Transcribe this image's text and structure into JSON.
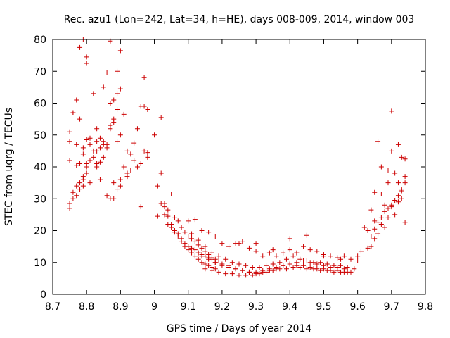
{
  "chart_data": {
    "type": "scatter",
    "title": "Rec. azu1 (Lon=242, Lat=34, h=HE), days 008-009, 2014, window 003",
    "xlabel": "GPS time / Days of year 2014",
    "ylabel": "STEC from uqrg / TECUs",
    "xlim": [
      8.7,
      9.8
    ],
    "ylim": [
      0,
      80
    ],
    "xticks": [
      "8.7",
      "8.8",
      "8.9",
      "9",
      "9.1",
      "9.2",
      "9.3",
      "9.4",
      "9.5",
      "9.6",
      "9.7",
      "9.8"
    ],
    "yticks": [
      "0",
      "10",
      "20",
      "30",
      "40",
      "50",
      "60",
      "70",
      "80"
    ],
    "grid": false,
    "legend": "none",
    "marker": "plus",
    "color": "#cc0000",
    "series": [
      {
        "x": [
          8.75,
          8.75,
          8.75,
          8.76,
          8.77,
          8.77,
          8.78,
          8.78,
          8.79,
          8.79,
          8.8,
          8.8,
          8.81,
          8.82,
          8.83,
          8.84,
          8.85,
          8.86,
          8.87,
          8.88,
          8.89,
          8.9,
          8.91,
          8.92,
          8.93,
          8.94,
          8.95,
          8.96,
          8.97,
          8.98,
          8.75,
          8.76,
          8.77,
          8.78,
          8.79,
          8.8,
          8.81,
          8.82,
          8.83,
          8.84,
          8.85,
          8.86,
          8.87,
          8.88,
          8.89,
          8.9,
          8.91,
          8.92,
          8.93,
          8.94,
          8.95,
          8.96,
          8.97,
          8.98,
          8.75,
          8.76,
          8.77,
          8.78,
          8.79,
          8.8,
          8.81,
          8.82,
          8.83,
          8.84,
          8.85,
          8.86,
          8.87,
          8.88,
          8.89,
          8.9,
          8.91,
          8.92,
          8.76,
          8.78,
          8.79,
          8.8,
          8.81,
          8.83,
          8.85,
          8.87,
          8.88,
          8.89,
          8.9,
          8.96,
          8.97,
          8.98,
          8.77,
          8.79,
          8.8,
          8.81,
          8.83,
          8.84,
          8.86,
          8.87,
          8.88,
          8.89,
          8.9,
          9.0,
          9.01,
          9.02,
          9.03,
          9.04,
          9.05,
          9.06,
          9.07,
          9.08,
          9.09,
          9.1,
          9.11,
          9.12,
          9.13,
          9.14,
          9.15,
          9.16,
          9.17,
          9.18,
          9.19,
          9.01,
          9.02,
          9.03,
          9.04,
          9.05,
          9.06,
          9.07,
          9.08,
          9.09,
          9.1,
          9.11,
          9.12,
          9.13,
          9.14,
          9.15,
          9.16,
          9.17,
          9.18,
          9.02,
          9.03,
          9.04,
          9.05,
          9.06,
          9.07,
          9.08,
          9.09,
          9.1,
          9.11,
          9.12,
          9.13,
          9.14,
          9.15,
          9.16,
          9.17,
          9.1,
          9.12,
          9.14,
          9.16,
          9.18,
          9.2,
          9.22,
          9.24,
          9.26,
          9.28,
          9.3,
          9.32,
          9.34,
          9.36,
          9.38,
          9.4,
          9.42,
          9.44,
          9.46,
          9.48,
          9.5,
          9.52,
          9.54,
          9.56,
          9.58,
          9.6,
          9.11,
          9.13,
          9.15,
          9.17,
          9.19,
          9.21,
          9.23,
          9.25,
          9.27,
          9.29,
          9.31,
          9.33,
          9.35,
          9.37,
          9.39,
          9.41,
          9.43,
          9.45,
          9.47,
          9.49,
          9.51,
          9.53,
          9.55,
          9.57,
          9.59,
          9.14,
          9.16,
          9.18,
          9.2,
          9.22,
          9.24,
          9.26,
          9.28,
          9.3,
          9.32,
          9.34,
          9.36,
          9.38,
          9.4,
          9.42,
          9.44,
          9.46,
          9.48,
          9.5,
          9.52,
          9.54,
          9.56,
          9.58,
          9.15,
          9.17,
          9.19,
          9.21,
          9.23,
          9.25,
          9.27,
          9.29,
          9.31,
          9.33,
          9.35,
          9.37,
          9.39,
          9.41,
          9.43,
          9.45,
          9.47,
          9.49,
          9.51,
          9.53,
          9.55,
          9.57,
          9.18,
          9.2,
          9.22,
          9.24,
          9.26,
          9.28,
          9.3,
          9.32,
          9.34,
          9.36,
          9.38,
          9.4,
          9.42,
          9.44,
          9.46,
          9.48,
          9.5,
          9.52,
          9.54,
          9.56,
          9.25,
          9.3,
          9.35,
          9.4,
          9.45,
          9.5,
          9.55,
          9.6,
          9.61,
          9.62,
          9.63,
          9.64,
          9.65,
          9.66,
          9.67,
          9.68,
          9.69,
          9.7,
          9.71,
          9.72,
          9.73,
          9.74,
          9.63,
          9.64,
          9.65,
          9.66,
          9.67,
          9.68,
          9.69,
          9.7,
          9.71,
          9.72,
          9.73,
          9.74,
          9.64,
          9.65,
          9.66,
          9.67,
          9.68,
          9.69,
          9.7,
          9.71,
          9.72,
          9.73,
          9.74,
          9.65,
          9.67,
          9.69,
          9.7,
          9.72,
          9.73,
          9.74
        ],
        "y": [
          51,
          48,
          42,
          57,
          61,
          47,
          77.5,
          55,
          80,
          46,
          72.5,
          74.5,
          47,
          63,
          52,
          49,
          65,
          69.5,
          79.5,
          55,
          70,
          76.5,
          56.5,
          45,
          44,
          47.5,
          52,
          59,
          68,
          44.5,
          27,
          30,
          34,
          35,
          37,
          41,
          42,
          43,
          45,
          46,
          48,
          47,
          53,
          54,
          58,
          50,
          40,
          38,
          39,
          42,
          40,
          41,
          45,
          43,
          28.5,
          32,
          40.5,
          41,
          44,
          48.5,
          49,
          45,
          40,
          41.5,
          43,
          46,
          60,
          61,
          63,
          64.5,
          40,
          37,
          57,
          33,
          36,
          38,
          42,
          48,
          47,
          52,
          35,
          48,
          36,
          27.5,
          59,
          58,
          31,
          34,
          40,
          35,
          41,
          36,
          31,
          30,
          30,
          33,
          34,
          50,
          34,
          28.5,
          27.5,
          24.5,
          22,
          20,
          19,
          17.5,
          16,
          15,
          14.5,
          14,
          13,
          12.5,
          12,
          11.5,
          11,
          11,
          10.5,
          24.5,
          38,
          25,
          22,
          21,
          19.5,
          18,
          16.5,
          15,
          14,
          13,
          12,
          11,
          10,
          9.5,
          9,
          8.5,
          8,
          55.5,
          28.5,
          26.5,
          31.5,
          24,
          23,
          21,
          19.5,
          18,
          17.5,
          16.5,
          15.5,
          14.5,
          13.5,
          12.5,
          11.5,
          23,
          23.5,
          20,
          19.5,
          18,
          16,
          15,
          16,
          16.5,
          14.5,
          13.5,
          12,
          13,
          12,
          13,
          14,
          13,
          15,
          14,
          13.5,
          12.5,
          12,
          11.5,
          12,
          11,
          10.5,
          19,
          17,
          15,
          13,
          12,
          11,
          10,
          9.5,
          9,
          8.5,
          8.5,
          9,
          9.5,
          10,
          11,
          12,
          11,
          10.5,
          10,
          10,
          9.5,
          9,
          9,
          8.5,
          8,
          12,
          11,
          10,
          9,
          8.5,
          8,
          7.5,
          7,
          7,
          7.5,
          8,
          8.5,
          9,
          9.5,
          9,
          9,
          8.5,
          8,
          8,
          7.5,
          7.5,
          7,
          7,
          8,
          7.5,
          7,
          6.5,
          6.5,
          6,
          6,
          6,
          6.5,
          7,
          7.5,
          8,
          8,
          8.5,
          8.5,
          8,
          8,
          7.5,
          7.5,
          7,
          7,
          7,
          10,
          9.5,
          9,
          8,
          7.5,
          7,
          6.5,
          7,
          7.5,
          8,
          9,
          9.5,
          10,
          10.5,
          10,
          9.5,
          9,
          8.5,
          8.5,
          8,
          16,
          16,
          14,
          17.5,
          18.5,
          12,
          11,
          12,
          13.5,
          21,
          20,
          26.5,
          32,
          48,
          31.5,
          28,
          35,
          45,
          38,
          47,
          43,
          42.5,
          14.5,
          15,
          17.5,
          19,
          22,
          21,
          24,
          27.5,
          25,
          29,
          33,
          37,
          18,
          20.5,
          22.5,
          24,
          26,
          27,
          28,
          29.5,
          31,
          32.5,
          35,
          23,
          40,
          39,
          57.5,
          35,
          30,
          22.5
        ]
      }
    ]
  }
}
